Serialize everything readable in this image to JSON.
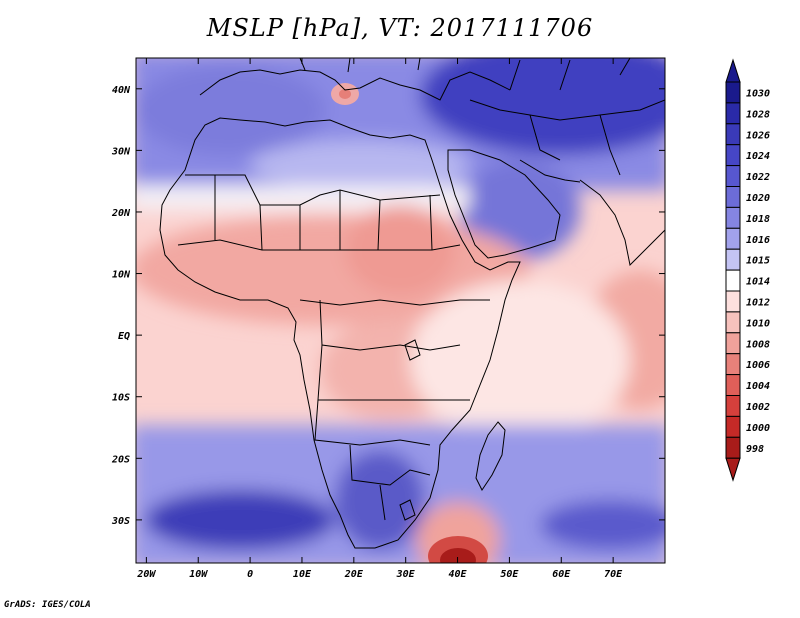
{
  "title": "MSLP [hPa], VT: 2017111706",
  "credit": "GrADS: IGES/COLA",
  "lat_labels": [
    "40N",
    "30N",
    "20N",
    "10N",
    "EQ",
    "10S",
    "20S",
    "30S"
  ],
  "lon_labels": [
    "20W",
    "10W",
    "0",
    "10E",
    "20E",
    "30E",
    "40E",
    "50E",
    "60E",
    "70E"
  ],
  "colorbar": {
    "levels": [
      "1030",
      "1028",
      "1026",
      "1024",
      "1022",
      "1020",
      "1018",
      "1016",
      "1015",
      "1014",
      "1012",
      "1010",
      "1008",
      "1006",
      "1004",
      "1002",
      "1000",
      "998"
    ],
    "colors": [
      "#1a1a8c",
      "#2a2aa8",
      "#3a3ab8",
      "#4646c6",
      "#5757d0",
      "#6c6cd8",
      "#8585e2",
      "#a2a2ec",
      "#c4c4f4",
      "#ffffff",
      "#fde0de",
      "#f7c2bd",
      "#f0a29b",
      "#e8817a",
      "#df5f59",
      "#d5403c",
      "#c52a27",
      "#a81c1a"
    ]
  },
  "map_extent": {
    "lon": [
      -22,
      80
    ],
    "lat": [
      -37,
      45
    ]
  }
}
